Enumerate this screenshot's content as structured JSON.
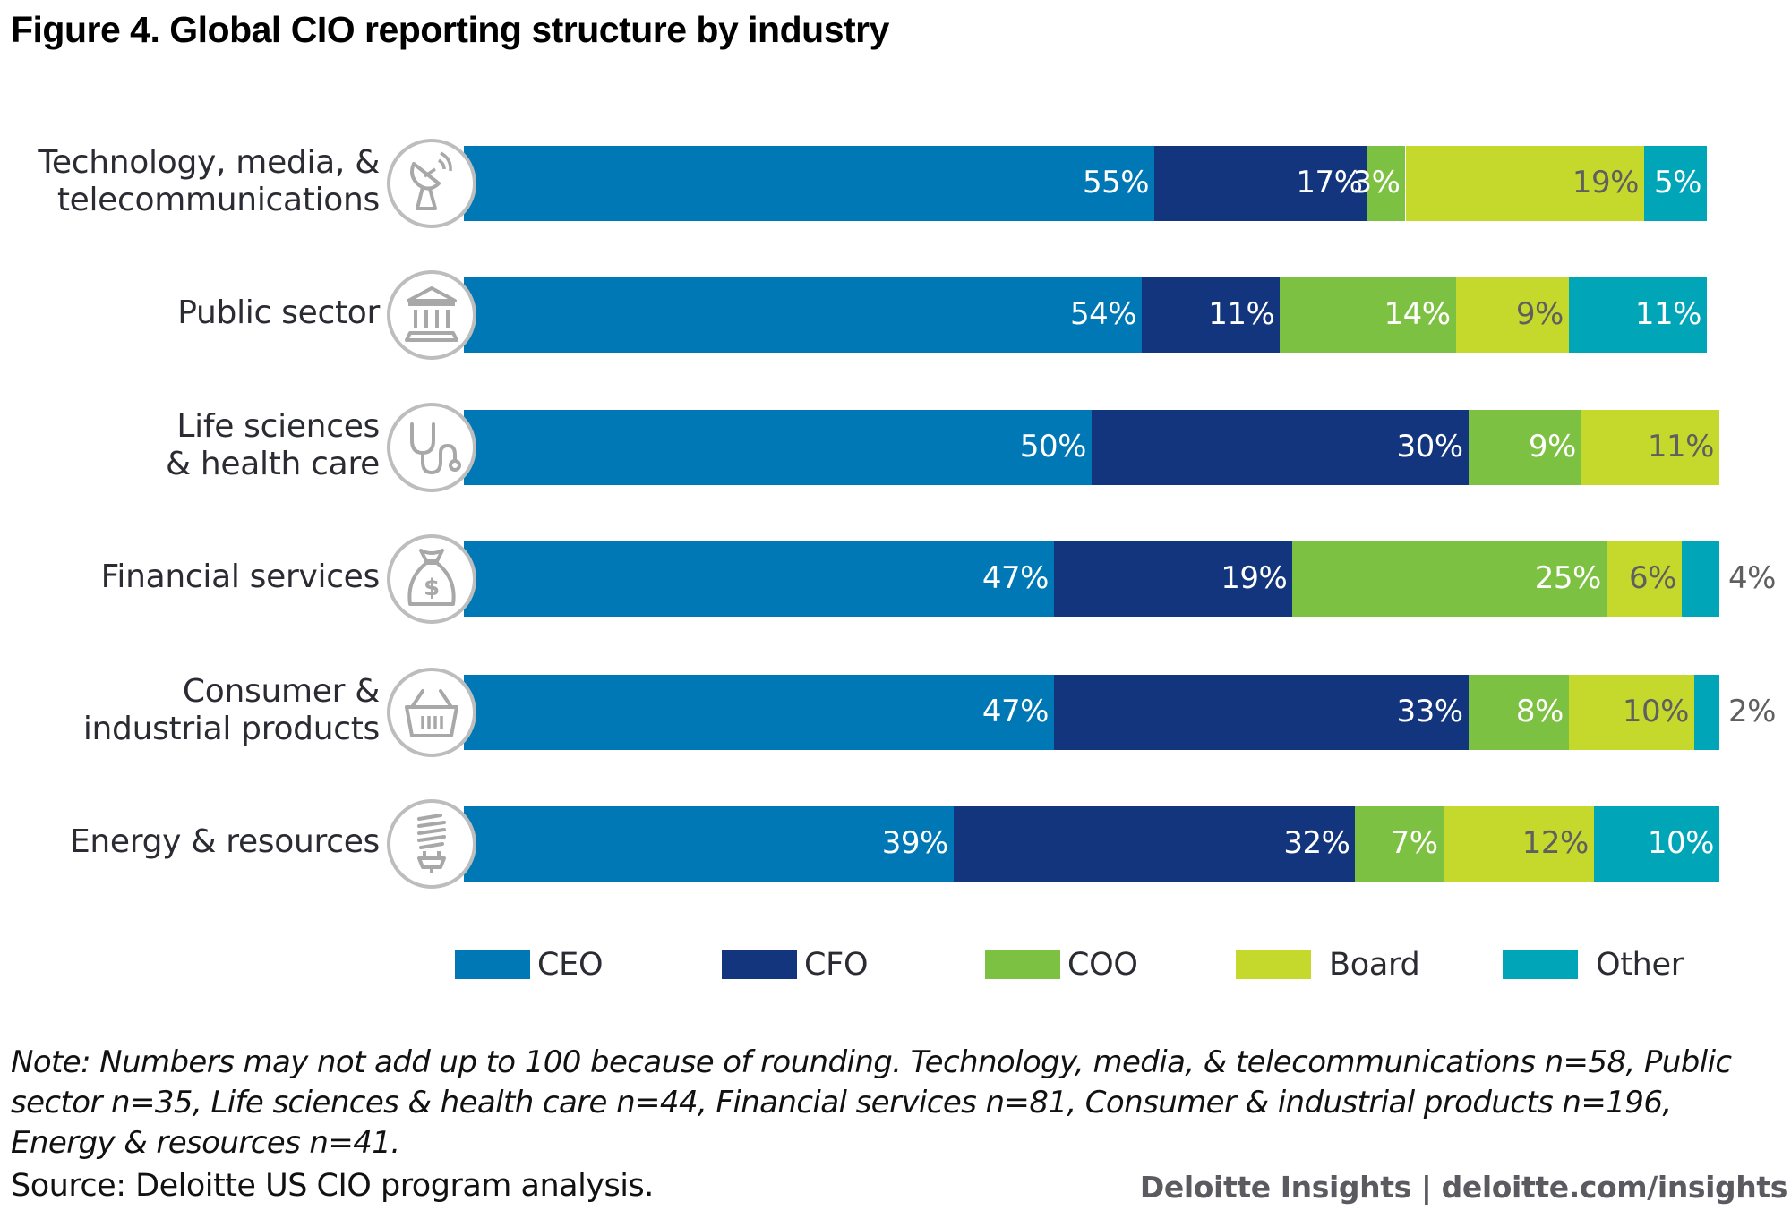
{
  "chart_data": {
    "type": "bar",
    "orientation": "horizontal",
    "stacked": true,
    "title": "Figure 4. Global CIO reporting structure by industry",
    "xlabel": "",
    "ylabel": "",
    "xlim": [
      0,
      100
    ],
    "grid": false,
    "legend_position": "bottom",
    "categories": [
      "Technology, media, & telecommunications",
      "Public sector",
      "Life sciences & health care",
      "Financial services",
      "Consumer & industrial products",
      "Energy & resources"
    ],
    "category_lines": [
      [
        "Technology, media, &",
        "telecommunications"
      ],
      [
        "Public sector"
      ],
      [
        "Life sciences",
        "& health care"
      ],
      [
        "Financial services"
      ],
      [
        "Consumer &",
        "industrial products"
      ],
      [
        "Energy & resources"
      ]
    ],
    "category_icons": [
      "satellite-dish-icon",
      "government-building-icon",
      "stethoscope-icon",
      "money-bag-icon",
      "shopping-basket-icon",
      "light-bulb-icon"
    ],
    "series": [
      {
        "name": "CEO",
        "color": "#0178B6",
        "label_color": "#ffffff",
        "values": [
          55,
          54,
          50,
          47,
          47,
          39
        ]
      },
      {
        "name": "CFO",
        "color": "#12357E",
        "label_color": "#ffffff",
        "values": [
          17,
          11,
          30,
          19,
          33,
          32
        ]
      },
      {
        "name": "COO",
        "color": "#7DC142",
        "label_color": "#ffffff",
        "values": [
          3,
          14,
          9,
          25,
          8,
          7
        ]
      },
      {
        "name": "Board",
        "color": "#C5D92D",
        "label_color": "#5f5f5f",
        "values": [
          19,
          9,
          11,
          6,
          10,
          12
        ]
      },
      {
        "name": "Other",
        "color": "#00A5B8",
        "label_color": "#ffffff",
        "values": [
          5,
          11,
          0,
          4,
          2,
          10
        ]
      }
    ],
    "value_suffix": "%",
    "outside_labels": [
      {
        "category_index": 3,
        "series": "Other",
        "text": "4%"
      },
      {
        "category_index": 4,
        "series": "Other",
        "text": "2%"
      }
    ]
  },
  "notes": {
    "note": "Note: Numbers may not add up to 100 because of rounding. Technology, media, & telecommunications n=58, Public sector n=35, Life sciences & health care n=44, Financial services n=81, Consumer & industrial products n=196, Energy & resources n=41.",
    "source": "Source: Deloitte US CIO program analysis.",
    "credit": "Deloitte Insights | deloitte.com/insights"
  }
}
